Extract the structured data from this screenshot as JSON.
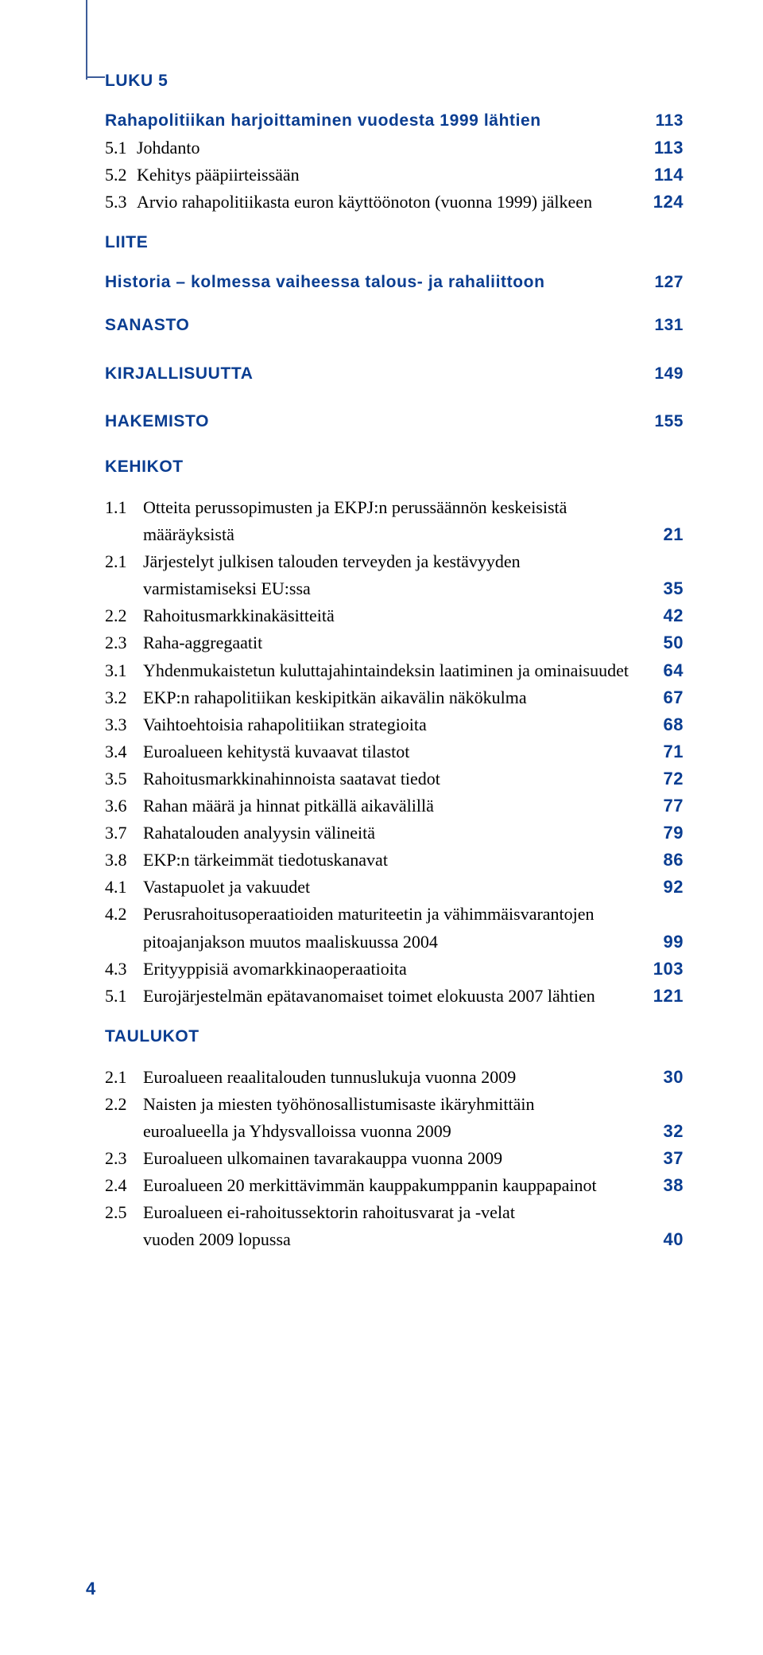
{
  "colors": {
    "brand_blue": "#0a3d91",
    "rule_blue": "#3d5c99",
    "text": "#000000",
    "background": "#ffffff"
  },
  "typography": {
    "heading_font": "Arial Narrow",
    "body_font": "Georgia",
    "heading_size_pt": 16,
    "body_size_pt": 16
  },
  "chapter5": {
    "heading": "LUKU 5",
    "title": "Rahapolitiikan harjoittaminen vuodesta 1999 lähtien",
    "title_pg": "113",
    "items": [
      {
        "idx": "5.1",
        "label": "Johdanto",
        "pg": "113"
      },
      {
        "idx": "5.2",
        "label": "Kehitys pääpiirteissään",
        "pg": "114"
      },
      {
        "idx": "5.3",
        "label": "Arvio rahapolitiikasta euron käyttöönoton (vuonna 1999) jälkeen",
        "pg": "124"
      }
    ]
  },
  "liite": {
    "heading": "LIITE",
    "title": "Historia – kolmessa vaiheessa talous- ja rahaliittoon",
    "title_pg": "127"
  },
  "simple_sections": [
    {
      "title": "SANASTO",
      "pg": "131"
    },
    {
      "title": "KIRJALLISUUTTA",
      "pg": "149"
    },
    {
      "title": "HAKEMISTO",
      "pg": "155"
    }
  ],
  "kehikot": {
    "heading": "KEHIKOT",
    "items": [
      {
        "idx": "1.1",
        "lines": [
          "Otteita perussopimusten ja EKPJ:n perussäännön keskeisistä",
          "määräyksistä"
        ],
        "pg": "21"
      },
      {
        "idx": "2.1",
        "lines": [
          "Järjestelyt julkisen talouden terveyden ja kestävyyden",
          "varmistamiseksi EU:ssa"
        ],
        "pg": "35"
      },
      {
        "idx": "2.2",
        "lines": [
          "Rahoitusmarkkinakäsitteitä"
        ],
        "pg": "42"
      },
      {
        "idx": "2.3",
        "lines": [
          "Raha-aggregaatit"
        ],
        "pg": "50"
      },
      {
        "idx": "3.1",
        "lines": [
          "Yhdenmukaistetun kuluttajahintaindeksin laatiminen ja ominaisuudet"
        ],
        "pg": "64"
      },
      {
        "idx": "3.2",
        "lines": [
          "EKP:n rahapolitiikan keskipitkän aikavälin näkökulma"
        ],
        "pg": "67"
      },
      {
        "idx": "3.3",
        "lines": [
          "Vaihtoehtoisia rahapolitiikan strategioita"
        ],
        "pg": "68"
      },
      {
        "idx": "3.4",
        "lines": [
          "Euroalueen kehitystä kuvaavat tilastot"
        ],
        "pg": "71"
      },
      {
        "idx": "3.5",
        "lines": [
          "Rahoitusmarkkinahinnoista saatavat tiedot"
        ],
        "pg": "72"
      },
      {
        "idx": "3.6",
        "lines": [
          "Rahan määrä ja hinnat pitkällä aikavälillä"
        ],
        "pg": "77"
      },
      {
        "idx": "3.7",
        "lines": [
          "Rahatalouden analyysin välineitä"
        ],
        "pg": "79"
      },
      {
        "idx": "3.8",
        "lines": [
          "EKP:n tärkeimmät tiedotuskanavat"
        ],
        "pg": "86"
      },
      {
        "idx": "4.1",
        "lines": [
          "Vastapuolet ja vakuudet"
        ],
        "pg": "92"
      },
      {
        "idx": "4.2",
        "lines": [
          "Perusrahoitusoperaatioiden maturiteetin ja vähimmäisvarantojen",
          "pitoajanjakson muutos maaliskuussa 2004"
        ],
        "pg": "99"
      },
      {
        "idx": "4.3",
        "lines": [
          "Erityyppisiä avomarkkinaoperaatioita"
        ],
        "pg": "103"
      },
      {
        "idx": "5.1",
        "lines": [
          "Eurojärjestelmän epätavanomaiset toimet elokuusta 2007 lähtien"
        ],
        "pg": "121"
      }
    ]
  },
  "taulukot": {
    "heading": "TAULUKOT",
    "items": [
      {
        "idx": "2.1",
        "lines": [
          "Euroalueen reaalitalouden tunnuslukuja vuonna 2009"
        ],
        "pg": "30"
      },
      {
        "idx": "2.2",
        "lines": [
          "Naisten ja miesten työhönosallistumisaste ikäryhmittäin",
          "euroalueella ja Yhdysvalloissa vuonna 2009"
        ],
        "pg": "32"
      },
      {
        "idx": "2.3",
        "lines": [
          "Euroalueen ulkomainen tavarakauppa vuonna 2009"
        ],
        "pg": "37"
      },
      {
        "idx": "2.4",
        "lines": [
          "Euroalueen 20 merkittävimmän kauppakumppanin kauppapainot"
        ],
        "pg": "38"
      },
      {
        "idx": "2.5",
        "lines": [
          "Euroalueen ei-rahoitussektorin rahoitusvarat ja -velat",
          "vuoden 2009 lopussa"
        ],
        "pg": "40"
      }
    ]
  },
  "page_number": "4"
}
